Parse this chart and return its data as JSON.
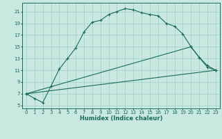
{
  "xlabel": "Humidex (Indice chaleur)",
  "ylabel": "",
  "bg_color": "#c8e8e0",
  "grid_color": "#9ecfc5",
  "line_color": "#1a6b5a",
  "xlim": [
    -0.5,
    23.5
  ],
  "ylim": [
    4.5,
    22.5
  ],
  "xticks": [
    0,
    1,
    2,
    3,
    4,
    5,
    6,
    7,
    8,
    9,
    10,
    11,
    12,
    13,
    14,
    15,
    16,
    17,
    18,
    19,
    20,
    21,
    22,
    23
  ],
  "yticks": [
    5,
    7,
    9,
    11,
    13,
    15,
    17,
    19,
    21
  ],
  "line1_x": [
    0,
    1,
    2,
    3,
    4,
    5,
    6,
    7,
    8,
    9,
    10,
    11,
    12,
    13,
    14,
    15,
    16,
    17,
    18,
    19,
    20,
    21,
    22,
    23
  ],
  "line1_y": [
    7.0,
    6.2,
    5.5,
    8.3,
    11.2,
    13.0,
    14.8,
    17.5,
    19.2,
    19.5,
    20.5,
    21.0,
    21.5,
    21.3,
    20.8,
    20.5,
    20.3,
    19.0,
    18.5,
    17.2,
    15.0,
    13.2,
    11.5,
    11.0
  ],
  "line2_x": [
    0,
    23
  ],
  "line2_y": [
    7.0,
    11.0
  ],
  "line3_x": [
    0,
    20,
    21,
    22,
    23
  ],
  "line3_y": [
    7.0,
    15.0,
    13.2,
    11.8,
    11.0
  ],
  "tick_fontsize": 5.0,
  "xlabel_fontsize": 6.0
}
